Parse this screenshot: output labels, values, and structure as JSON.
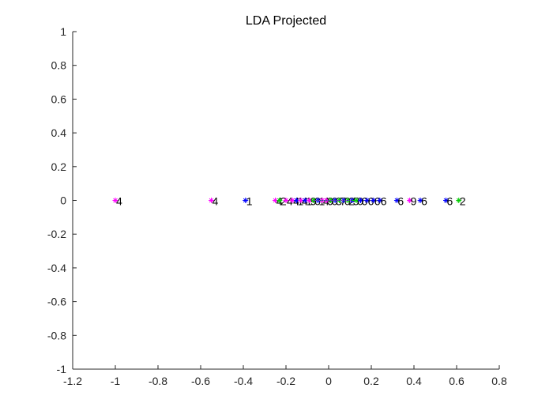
{
  "chart_data": {
    "type": "scatter",
    "title": "LDA Projected",
    "xlabel": "",
    "ylabel": "",
    "xlim": [
      -1.2,
      0.8
    ],
    "ylim": [
      -1,
      1
    ],
    "xticks": [
      "-1.2",
      "-1",
      "-0.8",
      "-0.6",
      "-0.4",
      "-0.2",
      "0",
      "0.2",
      "0.4",
      "0.6",
      "0.8"
    ],
    "yticks": [
      "-1",
      "-0.8",
      "-0.6",
      "-0.4",
      "-0.2",
      "0",
      "0.2",
      "0.4",
      "0.6",
      "0.8",
      "1"
    ],
    "grid": false,
    "legend": "none",
    "colors": {
      "axis": "#262626",
      "magenta": "#ff00ff",
      "blue": "#0000ff",
      "green": "#00cc00",
      "label": "#000000"
    },
    "points": [
      {
        "x": -1.0,
        "y": 0,
        "label": "4",
        "color": "magenta"
      },
      {
        "x": -0.55,
        "y": 0,
        "label": "4",
        "color": "magenta"
      },
      {
        "x": -0.39,
        "y": 0,
        "label": "1",
        "color": "blue"
      },
      {
        "x": -0.25,
        "y": 0,
        "label": "4",
        "color": "magenta"
      },
      {
        "x": -0.23,
        "y": 0,
        "label": "2",
        "color": "green"
      },
      {
        "x": -0.2,
        "y": 0,
        "label": "4",
        "color": "magenta"
      },
      {
        "x": -0.17,
        "y": 0,
        "label": "4",
        "color": "magenta"
      },
      {
        "x": -0.15,
        "y": 0,
        "label": "1",
        "color": "blue"
      },
      {
        "x": -0.13,
        "y": 0,
        "label": "4",
        "color": "magenta"
      },
      {
        "x": -0.11,
        "y": 0,
        "label": "1",
        "color": "blue"
      },
      {
        "x": -0.09,
        "y": 0,
        "label": "9",
        "color": "magenta"
      },
      {
        "x": -0.07,
        "y": 0,
        "label": "0",
        "color": "green"
      },
      {
        "x": -0.05,
        "y": 0,
        "label": "1",
        "color": "blue"
      },
      {
        "x": -0.03,
        "y": 0,
        "label": "4",
        "color": "magenta"
      },
      {
        "x": -0.01,
        "y": 0,
        "label": "9",
        "color": "magenta"
      },
      {
        "x": 0.01,
        "y": 0,
        "label": "0",
        "color": "green"
      },
      {
        "x": 0.03,
        "y": 0,
        "label": "3",
        "color": "blue"
      },
      {
        "x": 0.05,
        "y": 0,
        "label": "7",
        "color": "green"
      },
      {
        "x": 0.07,
        "y": 0,
        "label": "0",
        "color": "blue"
      },
      {
        "x": 0.09,
        "y": 0,
        "label": "2",
        "color": "green"
      },
      {
        "x": 0.11,
        "y": 0,
        "label": "5",
        "color": "blue"
      },
      {
        "x": 0.13,
        "y": 0,
        "label": "0",
        "color": "green"
      },
      {
        "x": 0.15,
        "y": 0,
        "label": "6",
        "color": "blue"
      },
      {
        "x": 0.18,
        "y": 0,
        "label": "6",
        "color": "blue"
      },
      {
        "x": 0.21,
        "y": 0,
        "label": "6",
        "color": "blue"
      },
      {
        "x": 0.24,
        "y": 0,
        "label": "6",
        "color": "blue"
      },
      {
        "x": 0.32,
        "y": 0,
        "label": "6",
        "color": "blue"
      },
      {
        "x": 0.38,
        "y": 0,
        "label": "9",
        "color": "magenta"
      },
      {
        "x": 0.43,
        "y": 0,
        "label": "6",
        "color": "blue"
      },
      {
        "x": 0.55,
        "y": 0,
        "label": "6",
        "color": "blue"
      },
      {
        "x": 0.61,
        "y": 0,
        "label": "2",
        "color": "green"
      }
    ]
  }
}
